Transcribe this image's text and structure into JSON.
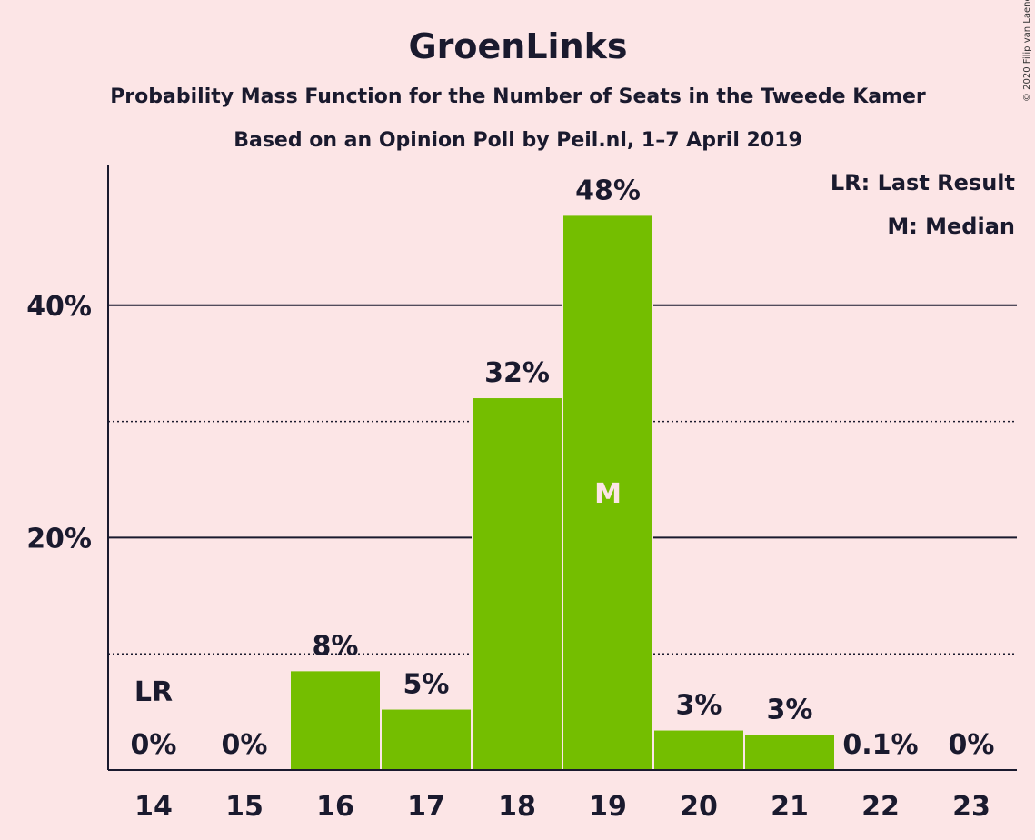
{
  "copyright": "© 2020 Filip van Laenen",
  "chart_data": {
    "type": "bar",
    "title": "GroenLinks",
    "subtitle": "Probability Mass Function for the Number of Seats in the Tweede Kamer",
    "subtitle2": "Based on an Opinion Poll by Peil.nl, 1–7 April 2019",
    "legend": [
      "LR: Last Result",
      "M: Median"
    ],
    "categories": [
      "14",
      "15",
      "16",
      "17",
      "18",
      "19",
      "20",
      "21",
      "22",
      "23"
    ],
    "values": [
      0,
      0,
      8.5,
      5.2,
      32,
      47.7,
      3.4,
      3.0,
      0.1,
      0
    ],
    "data_labels": [
      "0%",
      "0%",
      "8%",
      "5%",
      "32%",
      "48%",
      "3%",
      "3%",
      "0.1%",
      "0%"
    ],
    "last_result_category": "14",
    "last_result_marker": "LR",
    "median_category": "19",
    "median_marker": "M",
    "ylim": [
      0,
      52
    ],
    "major_ticks": [
      20,
      40
    ],
    "major_tick_labels": [
      "20%",
      "40%"
    ],
    "minor_ticks": [
      10,
      30
    ],
    "bar_color": "#74be00",
    "background": "#fce5e6"
  }
}
